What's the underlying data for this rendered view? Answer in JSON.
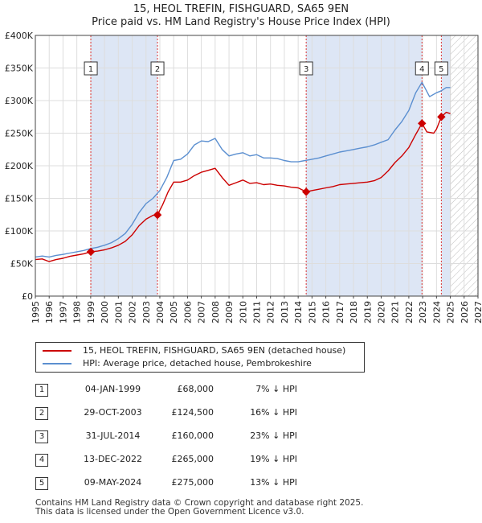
{
  "title_line1": "15, HEOL TREFIN, FISHGUARD, SA65 9EN",
  "title_line2": "Price paid vs. HM Land Registry's House Price Index (HPI)",
  "legend": {
    "property": "15, HEOL TREFIN, FISHGUARD, SA65 9EN (detached house)",
    "hpi": "HPI: Average price, detached house, Pembrokeshire"
  },
  "colors": {
    "property": "#cc0000",
    "hpi": "#5b8fd0",
    "shade": "#dde6f5",
    "marker_line": "#dd3333"
  },
  "transactions": [
    {
      "num": "1",
      "date": "04-JAN-1999",
      "price": "£68,000",
      "hpi": "7% ↓ HPI"
    },
    {
      "num": "2",
      "date": "29-OCT-2003",
      "price": "£124,500",
      "hpi": "16% ↓ HPI"
    },
    {
      "num": "3",
      "date": "31-JUL-2014",
      "price": "£160,000",
      "hpi": "23% ↓ HPI"
    },
    {
      "num": "4",
      "date": "13-DEC-2022",
      "price": "£265,000",
      "hpi": "19% ↓ HPI"
    },
    {
      "num": "5",
      "date": "09-MAY-2024",
      "price": "£275,000",
      "hpi": "13% ↓ HPI"
    }
  ],
  "footer_line1": "Contains HM Land Registry data © Crown copyright and database right 2025.",
  "footer_line2": "This data is licensed under the Open Government Licence v3.0.",
  "chart_data": {
    "type": "line",
    "xlim": [
      1995,
      2027
    ],
    "ylim": [
      0,
      400000
    ],
    "x_ticks": [
      "1995",
      "1996",
      "1997",
      "1998",
      "1999",
      "2000",
      "2001",
      "2002",
      "2003",
      "2004",
      "2005",
      "2006",
      "2007",
      "2008",
      "2009",
      "2010",
      "2011",
      "2012",
      "2013",
      "2014",
      "2015",
      "2016",
      "2017",
      "2018",
      "2019",
      "2020",
      "2021",
      "2022",
      "2023",
      "2024",
      "2025",
      "2026",
      "2027"
    ],
    "y_ticks": [
      {
        "value": 0,
        "label": "£0"
      },
      {
        "value": 50000,
        "label": "£50K"
      },
      {
        "value": 100000,
        "label": "£100K"
      },
      {
        "value": 150000,
        "label": "£150K"
      },
      {
        "value": 200000,
        "label": "£200K"
      },
      {
        "value": 250000,
        "label": "£250K"
      },
      {
        "value": 300000,
        "label": "£300K"
      },
      {
        "value": 350000,
        "label": "£350K"
      },
      {
        "value": 400000,
        "label": "£400K"
      }
    ],
    "forecast_from": 2025.0,
    "shaded_periods": [
      [
        1999.01,
        2003.83
      ],
      [
        2014.58,
        2022.95
      ],
      [
        2024.35,
        2025.0
      ]
    ],
    "sales": [
      {
        "label": "1",
        "x": 1999.01,
        "y": 68000
      },
      {
        "label": "2",
        "x": 2003.83,
        "y": 124500
      },
      {
        "label": "3",
        "x": 2014.58,
        "y": 160000
      },
      {
        "label": "4",
        "x": 2022.95,
        "y": 265000
      },
      {
        "label": "5",
        "x": 2024.35,
        "y": 275000
      }
    ],
    "series": [
      {
        "name": "HPI: Average price, detached house, Pembrokeshire",
        "color": "#5b8fd0",
        "x": [
          1995.0,
          1995.5,
          1996.0,
          1996.5,
          1997.0,
          1997.5,
          1998.0,
          1998.5,
          1999.0,
          1999.5,
          2000.0,
          2000.5,
          2001.0,
          2001.5,
          2002.0,
          2002.5,
          2003.0,
          2003.5,
          2004.0,
          2004.5,
          2005.0,
          2005.5,
          2006.0,
          2006.5,
          2007.0,
          2007.5,
          2008.0,
          2008.5,
          2009.0,
          2009.5,
          2010.0,
          2010.5,
          2011.0,
          2011.5,
          2012.0,
          2012.5,
          2013.0,
          2013.5,
          2014.0,
          2014.5,
          2015.0,
          2015.5,
          2016.0,
          2016.5,
          2017.0,
          2017.5,
          2018.0,
          2018.5,
          2019.0,
          2019.5,
          2020.0,
          2020.5,
          2021.0,
          2021.5,
          2022.0,
          2022.5,
          2022.95,
          2023.5,
          2024.0,
          2024.35,
          2024.7,
          2025.0
        ],
        "y": [
          60000,
          61500,
          60000,
          62500,
          64000,
          66000,
          68000,
          70000,
          73000,
          75000,
          78000,
          82000,
          88000,
          96000,
          110000,
          128000,
          142000,
          150000,
          162000,
          182000,
          208000,
          210000,
          218000,
          232000,
          238000,
          237000,
          242000,
          225000,
          215000,
          218000,
          220000,
          215000,
          217000,
          212000,
          212000,
          211000,
          208000,
          206000,
          206000,
          208000,
          210000,
          212000,
          215000,
          218000,
          221000,
          223000,
          225000,
          227000,
          229000,
          232000,
          236000,
          240000,
          255000,
          268000,
          285000,
          312000,
          328000,
          306000,
          312000,
          315000,
          320000,
          320000
        ]
      },
      {
        "name": "15, HEOL TREFIN, FISHGUARD, SA65 9EN (detached house)",
        "color": "#cc0000",
        "x": [
          1995.0,
          1995.5,
          1996.0,
          1996.5,
          1997.0,
          1997.5,
          1998.0,
          1998.5,
          1999.01,
          1999.5,
          2000.0,
          2000.5,
          2001.0,
          2001.5,
          2002.0,
          2002.5,
          2003.0,
          2003.5,
          2003.83,
          2004.2,
          2004.6,
          2005.0,
          2005.5,
          2006.0,
          2006.5,
          2007.0,
          2007.5,
          2008.0,
          2008.5,
          2009.0,
          2009.5,
          2010.0,
          2010.5,
          2011.0,
          2011.5,
          2012.0,
          2012.5,
          2013.0,
          2013.5,
          2014.0,
          2014.58,
          2015.0,
          2015.5,
          2016.0,
          2016.5,
          2017.0,
          2017.5,
          2018.0,
          2018.5,
          2019.0,
          2019.5,
          2020.0,
          2020.5,
          2021.0,
          2021.5,
          2022.0,
          2022.5,
          2022.95,
          2023.3,
          2023.8,
          2024.0,
          2024.35,
          2024.7,
          2025.0
        ],
        "y": [
          56000,
          57000,
          53000,
          56000,
          58000,
          61000,
          63000,
          65000,
          68000,
          69000,
          71000,
          74000,
          78000,
          84000,
          94000,
          108000,
          118000,
          124000,
          124500,
          140000,
          160000,
          175000,
          175000,
          178000,
          185000,
          190000,
          193000,
          196000,
          182000,
          170000,
          174000,
          178000,
          173000,
          174000,
          171000,
          172000,
          170000,
          169000,
          167000,
          166000,
          160000,
          162000,
          164000,
          166000,
          168000,
          171000,
          172000,
          173000,
          174000,
          175000,
          177000,
          182000,
          192000,
          205000,
          215000,
          228000,
          248000,
          265000,
          252000,
          250000,
          256000,
          275000,
          282000,
          280000
        ]
      }
    ]
  }
}
